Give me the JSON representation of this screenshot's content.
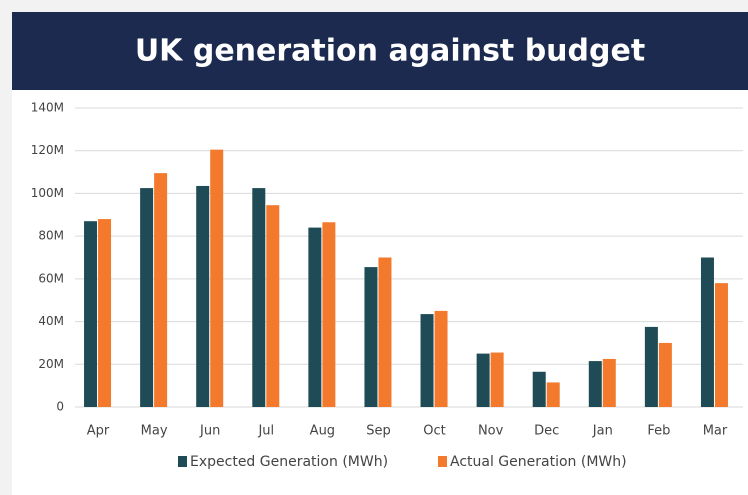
{
  "chart_data": {
    "type": "bar",
    "title": "UK generation against budget",
    "categories": [
      "Apr",
      "May",
      "Jun",
      "Jul",
      "Aug",
      "Sep",
      "Oct",
      "Nov",
      "Dec",
      "Jan",
      "Feb",
      "Mar"
    ],
    "series": [
      {
        "name": "Expected Generation (MWh)",
        "color": "#1e4b55",
        "values": [
          87000000,
          102500000,
          103500000,
          102500000,
          84000000,
          65500000,
          43500000,
          25000000,
          16500000,
          21500000,
          37500000,
          70000000
        ]
      },
      {
        "name": "Actual Generation (MWh)",
        "color": "#f37a2c",
        "values": [
          88000000,
          109500000,
          120500000,
          94500000,
          86500000,
          70000000,
          45000000,
          25500000,
          11500000,
          22500000,
          30000000,
          58000000
        ]
      }
    ],
    "ylim": [
      0,
      140000000
    ],
    "yticks": [
      0,
      {
        "value": 20000000,
        "label": "20M"
      },
      {
        "value": 40000000,
        "label": "40M"
      },
      {
        "value": 60000000,
        "label": "60M"
      },
      {
        "value": 80000000,
        "label": "80M"
      },
      {
        "value": 100000000,
        "label": "100M"
      },
      {
        "value": 120000000,
        "label": "120M"
      },
      {
        "value": 140000000,
        "label": "140M"
      }
    ],
    "grid": true
  }
}
